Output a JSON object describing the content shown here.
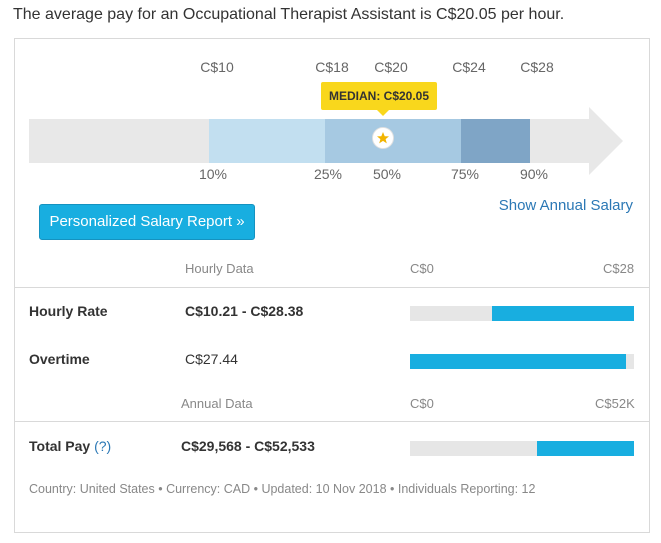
{
  "headline": "The average pay for an Occupational Therapist Assistant is C$20.05 per hour.",
  "chart": {
    "value_labels": [
      "C$10",
      "C$18",
      "C$20",
      "C$24",
      "C$28"
    ],
    "percentile_labels": [
      "10%",
      "25%",
      "50%",
      "75%",
      "90%"
    ],
    "median_tag": "MEDIAN: C$20.05",
    "median_icon": "star-icon",
    "colors": {
      "p10_p25": "#c2dff0",
      "p25_p75": "#a6c9e2",
      "p75_p90": "#7fa5c6",
      "track": "#e8e8e8",
      "median": "#f9d71c"
    }
  },
  "report_button": "Personalized Salary Report »",
  "annual_link": "Show Annual Salary",
  "hourly_section": {
    "header": "Hourly Data",
    "scale_min": "C$0",
    "scale_max": "C$28"
  },
  "rows": {
    "hourly_rate": {
      "label": "Hourly Rate",
      "value": "C$10.21 - C$28.38",
      "range": [
        0.364,
        1.0
      ]
    },
    "overtime": {
      "label": "Overtime",
      "value": "C$27.44",
      "range": [
        0.0,
        0.965
      ]
    },
    "total_pay": {
      "label": "Total Pay",
      "help": "(?)",
      "value": "C$29,568 - C$52,533",
      "range": [
        0.565,
        1.0
      ]
    }
  },
  "annual_section": {
    "header": "Annual Data",
    "scale_min": "C$0",
    "scale_max": "C$52K"
  },
  "footer": "Country: United States • Currency: CAD • Updated: 10 Nov 2018 • Individuals Reporting: 12",
  "accent_color": "#18aee0"
}
